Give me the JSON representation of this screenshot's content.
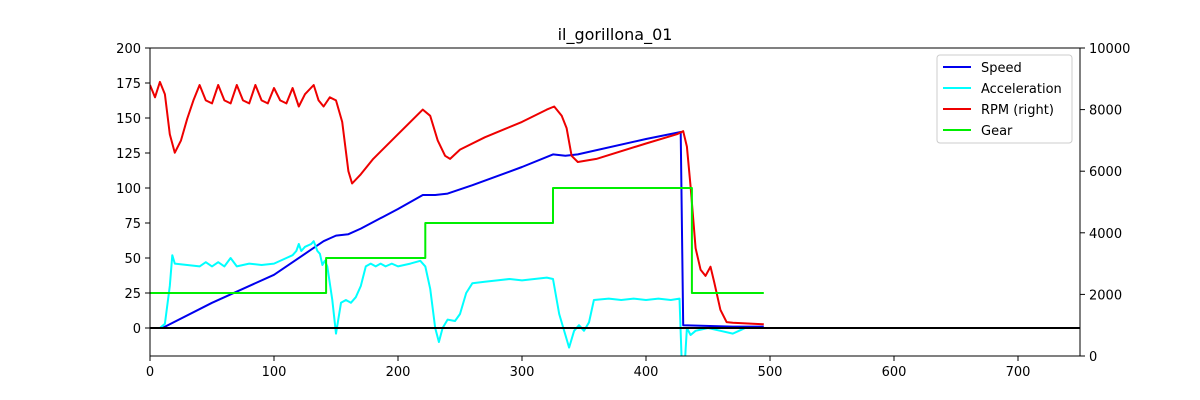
{
  "chart_data": {
    "type": "line",
    "title": "il_gorillona_01",
    "xlim": [
      0,
      750
    ],
    "ylim_left": [
      -20,
      200
    ],
    "ylim_right": [
      0,
      10000
    ],
    "x_ticks": [
      0,
      100,
      200,
      300,
      400,
      500,
      600,
      700
    ],
    "y_ticks_left": [
      0,
      25,
      50,
      75,
      100,
      125,
      150,
      175,
      200
    ],
    "y_ticks_right": [
      0,
      2000,
      4000,
      6000,
      8000,
      10000
    ],
    "grid": false,
    "legend_position": "top-right",
    "zero_line": true,
    "series": [
      {
        "name": "Speed",
        "axis": "left",
        "color": "#0000ee",
        "points": [
          [
            10,
            0
          ],
          [
            50,
            18
          ],
          [
            100,
            38
          ],
          [
            130,
            56
          ],
          [
            140,
            62
          ],
          [
            145,
            64
          ],
          [
            150,
            66
          ],
          [
            160,
            67
          ],
          [
            170,
            71
          ],
          [
            200,
            85
          ],
          [
            220,
            95
          ],
          [
            230,
            95
          ],
          [
            240,
            96
          ],
          [
            260,
            102
          ],
          [
            300,
            115
          ],
          [
            325,
            124
          ],
          [
            335,
            123
          ],
          [
            345,
            124
          ],
          [
            400,
            135
          ],
          [
            428,
            140
          ],
          [
            430,
            2
          ],
          [
            470,
            1
          ],
          [
            495,
            1
          ]
        ]
      },
      {
        "name": "Acceleration",
        "axis": "left",
        "color": "#00ffff",
        "points": [
          [
            8,
            0
          ],
          [
            12,
            3
          ],
          [
            16,
            30
          ],
          [
            18,
            52
          ],
          [
            20,
            46
          ],
          [
            30,
            45
          ],
          [
            40,
            44
          ],
          [
            45,
            47
          ],
          [
            50,
            44
          ],
          [
            55,
            47
          ],
          [
            60,
            44
          ],
          [
            65,
            50
          ],
          [
            70,
            44
          ],
          [
            80,
            46
          ],
          [
            90,
            45
          ],
          [
            100,
            46
          ],
          [
            110,
            50
          ],
          [
            115,
            52
          ],
          [
            118,
            55
          ],
          [
            120,
            60
          ],
          [
            122,
            55
          ],
          [
            125,
            58
          ],
          [
            130,
            60
          ],
          [
            132,
            62
          ],
          [
            135,
            55
          ],
          [
            137,
            53
          ],
          [
            139,
            45
          ],
          [
            141,
            48
          ],
          [
            143,
            44
          ],
          [
            147,
            20
          ],
          [
            150,
            -4
          ],
          [
            154,
            18
          ],
          [
            158,
            20
          ],
          [
            162,
            18
          ],
          [
            166,
            22
          ],
          [
            170,
            30
          ],
          [
            174,
            44
          ],
          [
            178,
            46
          ],
          [
            182,
            44
          ],
          [
            186,
            46
          ],
          [
            190,
            44
          ],
          [
            195,
            46
          ],
          [
            200,
            44
          ],
          [
            210,
            46
          ],
          [
            218,
            48
          ],
          [
            222,
            44
          ],
          [
            226,
            28
          ],
          [
            230,
            0
          ],
          [
            233,
            -10
          ],
          [
            236,
            0
          ],
          [
            240,
            6
          ],
          [
            246,
            5
          ],
          [
            250,
            10
          ],
          [
            255,
            25
          ],
          [
            260,
            32
          ],
          [
            270,
            33
          ],
          [
            280,
            34
          ],
          [
            290,
            35
          ],
          [
            300,
            34
          ],
          [
            310,
            35
          ],
          [
            320,
            36
          ],
          [
            325,
            35
          ],
          [
            330,
            10
          ],
          [
            335,
            -5
          ],
          [
            338,
            -14
          ],
          [
            342,
            -2
          ],
          [
            346,
            2
          ],
          [
            350,
            -2
          ],
          [
            354,
            4
          ],
          [
            358,
            20
          ],
          [
            370,
            21
          ],
          [
            380,
            20
          ],
          [
            390,
            21
          ],
          [
            400,
            20
          ],
          [
            410,
            21
          ],
          [
            420,
            20
          ],
          [
            427,
            21
          ],
          [
            429,
            -30
          ],
          [
            431,
            -30
          ],
          [
            433,
            0
          ],
          [
            436,
            -5
          ],
          [
            440,
            -2
          ],
          [
            450,
            0
          ],
          [
            460,
            -2
          ],
          [
            470,
            -4
          ],
          [
            475,
            -2
          ],
          [
            480,
            0
          ],
          [
            490,
            0
          ]
        ]
      },
      {
        "name": "RPM (right)",
        "axis": "right",
        "color": "#ee0000",
        "points": [
          [
            0,
            8800
          ],
          [
            4,
            8400
          ],
          [
            8,
            8900
          ],
          [
            12,
            8500
          ],
          [
            16,
            7200
          ],
          [
            20,
            6600
          ],
          [
            25,
            7000
          ],
          [
            30,
            7700
          ],
          [
            35,
            8300
          ],
          [
            40,
            8800
          ],
          [
            45,
            8300
          ],
          [
            50,
            8200
          ],
          [
            55,
            8800
          ],
          [
            60,
            8300
          ],
          [
            65,
            8200
          ],
          [
            70,
            8800
          ],
          [
            75,
            8300
          ],
          [
            80,
            8200
          ],
          [
            85,
            8800
          ],
          [
            90,
            8300
          ],
          [
            95,
            8200
          ],
          [
            100,
            8700
          ],
          [
            105,
            8300
          ],
          [
            110,
            8200
          ],
          [
            115,
            8700
          ],
          [
            120,
            8100
          ],
          [
            125,
            8500
          ],
          [
            132,
            8800
          ],
          [
            136,
            8300
          ],
          [
            140,
            8100
          ],
          [
            145,
            8400
          ],
          [
            150,
            8300
          ],
          [
            155,
            7600
          ],
          [
            160,
            6000
          ],
          [
            163,
            5600
          ],
          [
            170,
            5900
          ],
          [
            180,
            6400
          ],
          [
            200,
            7200
          ],
          [
            220,
            8000
          ],
          [
            226,
            7800
          ],
          [
            232,
            7000
          ],
          [
            238,
            6500
          ],
          [
            242,
            6400
          ],
          [
            250,
            6700
          ],
          [
            270,
            7100
          ],
          [
            300,
            7600
          ],
          [
            320,
            8000
          ],
          [
            326,
            8100
          ],
          [
            332,
            7800
          ],
          [
            336,
            7400
          ],
          [
            340,
            6500
          ],
          [
            345,
            6300
          ],
          [
            360,
            6400
          ],
          [
            400,
            6900
          ],
          [
            425,
            7200
          ],
          [
            430,
            7300
          ],
          [
            433,
            6800
          ],
          [
            436,
            5500
          ],
          [
            440,
            3500
          ],
          [
            444,
            2800
          ],
          [
            448,
            2600
          ],
          [
            452,
            2900
          ],
          [
            455,
            2400
          ],
          [
            460,
            1500
          ],
          [
            465,
            1100
          ],
          [
            470,
            1080
          ],
          [
            495,
            1030
          ]
        ]
      },
      {
        "name": "Gear",
        "axis": "left",
        "color": "#00ee00",
        "points": [
          [
            0,
            25
          ],
          [
            142,
            25
          ],
          [
            142,
            50
          ],
          [
            222,
            50
          ],
          [
            222,
            75
          ],
          [
            325,
            75
          ],
          [
            325,
            100
          ],
          [
            437,
            100
          ],
          [
            437,
            25
          ],
          [
            495,
            25
          ]
        ]
      }
    ]
  }
}
